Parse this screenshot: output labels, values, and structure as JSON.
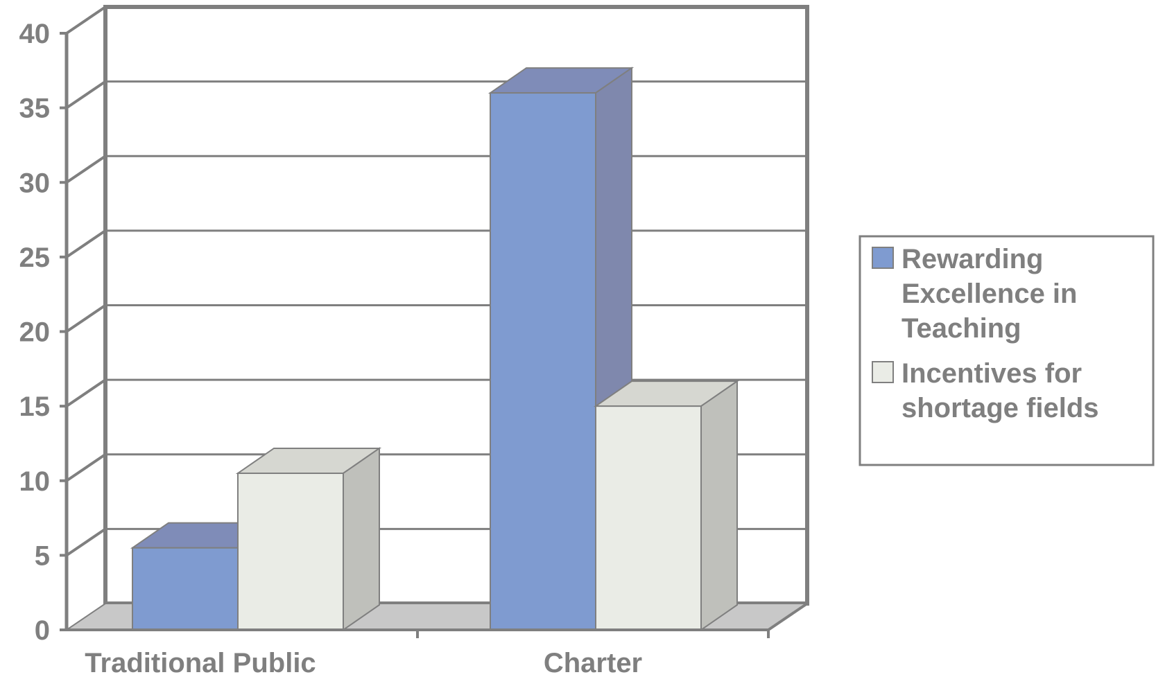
{
  "chart_data": {
    "type": "bar",
    "categories": [
      "Traditional Public",
      "Charter"
    ],
    "series": [
      {
        "name": "Rewarding Excellence in Teaching",
        "values": [
          5.5,
          36
        ],
        "color": "#7f9bd0",
        "top_color": "#7f8cb8",
        "side_color": "#7f88ad"
      },
      {
        "name": "Incentives for shortage fields",
        "values": [
          10.5,
          15
        ],
        "color": "#eaece6",
        "top_color": "#d6d7d1",
        "side_color": "#bfc0bb"
      }
    ],
    "ylim": [
      0,
      40
    ],
    "yticks": [
      0,
      5,
      10,
      15,
      20,
      25,
      30,
      35,
      40
    ],
    "title": "",
    "xlabel": "",
    "ylabel": "",
    "grid": true,
    "legend_position": "right",
    "axis_color": "#7f7f7f",
    "floor_color": "#c8c8c8"
  }
}
